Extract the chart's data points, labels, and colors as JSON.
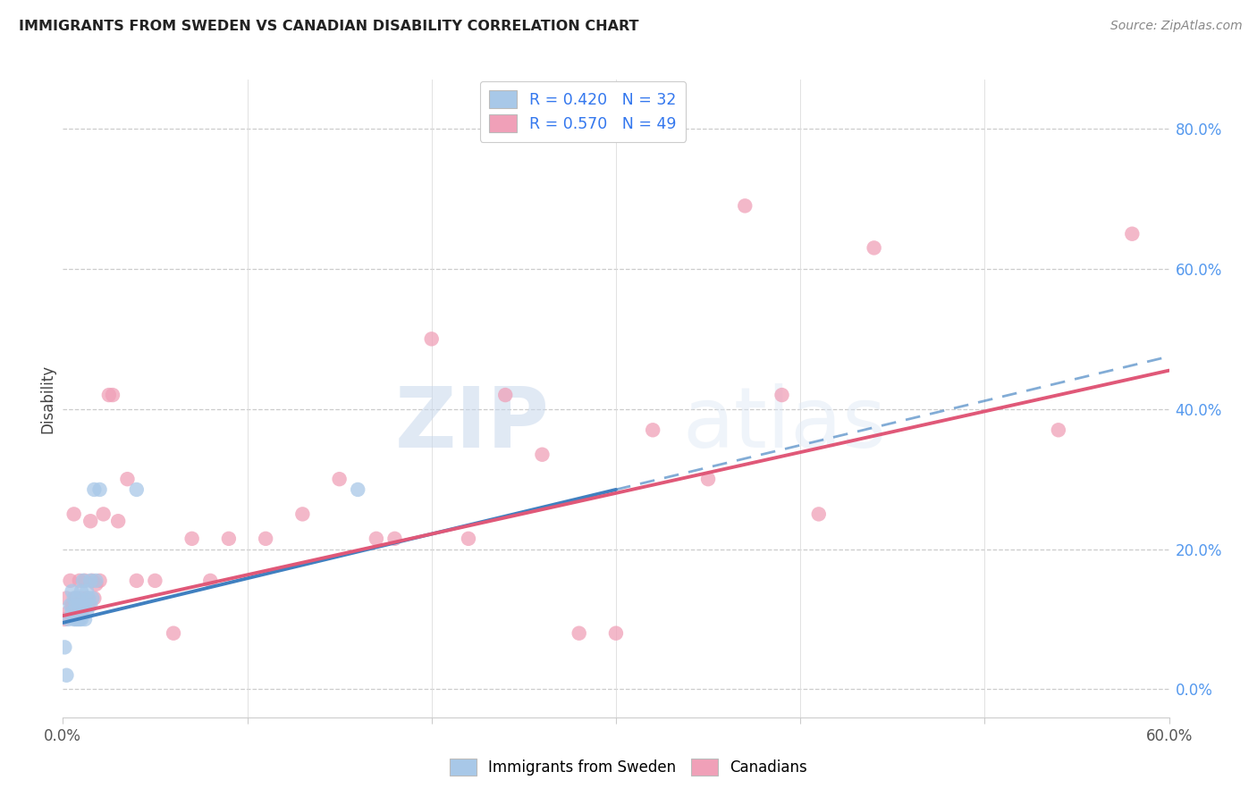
{
  "title": "IMMIGRANTS FROM SWEDEN VS CANADIAN DISABILITY CORRELATION CHART",
  "source": "Source: ZipAtlas.com",
  "ylabel": "Disability",
  "xmin": 0.0,
  "xmax": 0.6,
  "ymin": -0.04,
  "ymax": 0.87,
  "blue_color": "#a8c8e8",
  "pink_color": "#f0a0b8",
  "blue_line_color": "#4080c0",
  "pink_line_color": "#e05878",
  "watermark_zip": "ZIP",
  "watermark_atlas": "atlas",
  "legend1_r": "0.420",
  "legend1_n": "32",
  "legend2_r": "0.570",
  "legend2_n": "49",
  "blue_line_xstart": 0.0,
  "blue_line_xend": 0.3,
  "blue_line_ystart": 0.095,
  "blue_line_yend": 0.285,
  "pink_line_xstart": 0.0,
  "pink_line_xend": 0.6,
  "pink_line_ystart": 0.105,
  "pink_line_yend": 0.455,
  "blue_points_x": [
    0.001,
    0.002,
    0.003,
    0.004,
    0.005,
    0.005,
    0.006,
    0.006,
    0.007,
    0.007,
    0.008,
    0.008,
    0.009,
    0.009,
    0.01,
    0.01,
    0.01,
    0.011,
    0.011,
    0.012,
    0.012,
    0.013,
    0.013,
    0.014,
    0.015,
    0.015,
    0.016,
    0.017,
    0.018,
    0.02,
    0.04,
    0.16
  ],
  "blue_points_y": [
    0.06,
    0.02,
    0.1,
    0.12,
    0.11,
    0.14,
    0.1,
    0.13,
    0.1,
    0.12,
    0.1,
    0.13,
    0.1,
    0.12,
    0.1,
    0.11,
    0.14,
    0.12,
    0.155,
    0.1,
    0.12,
    0.11,
    0.14,
    0.13,
    0.12,
    0.155,
    0.13,
    0.285,
    0.155,
    0.285,
    0.285,
    0.285
  ],
  "pink_points_x": [
    0.001,
    0.002,
    0.003,
    0.004,
    0.005,
    0.006,
    0.007,
    0.008,
    0.009,
    0.01,
    0.011,
    0.012,
    0.013,
    0.014,
    0.015,
    0.016,
    0.017,
    0.018,
    0.02,
    0.022,
    0.025,
    0.027,
    0.03,
    0.035,
    0.04,
    0.05,
    0.06,
    0.07,
    0.08,
    0.09,
    0.11,
    0.13,
    0.15,
    0.17,
    0.18,
    0.2,
    0.22,
    0.24,
    0.26,
    0.28,
    0.3,
    0.32,
    0.35,
    0.37,
    0.39,
    0.41,
    0.44,
    0.54,
    0.58
  ],
  "pink_points_y": [
    0.1,
    0.13,
    0.11,
    0.155,
    0.12,
    0.25,
    0.13,
    0.12,
    0.155,
    0.13,
    0.12,
    0.155,
    0.13,
    0.12,
    0.24,
    0.155,
    0.13,
    0.15,
    0.155,
    0.25,
    0.42,
    0.42,
    0.24,
    0.3,
    0.155,
    0.155,
    0.08,
    0.215,
    0.155,
    0.215,
    0.215,
    0.25,
    0.3,
    0.215,
    0.215,
    0.5,
    0.215,
    0.42,
    0.335,
    0.08,
    0.08,
    0.37,
    0.3,
    0.69,
    0.42,
    0.25,
    0.63,
    0.37,
    0.65
  ]
}
